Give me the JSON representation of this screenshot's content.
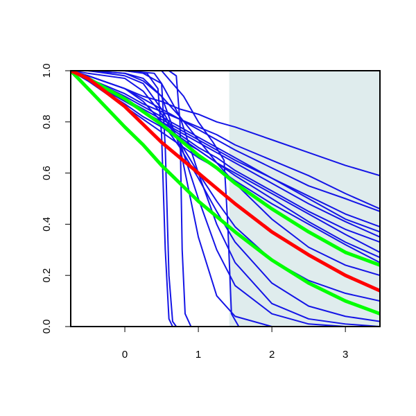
{
  "chart_data": {
    "type": "line",
    "xlim": [
      -0.736,
      3.47
    ],
    "ylim": [
      0,
      1
    ],
    "xticks": [
      0,
      1,
      2,
      3
    ],
    "yticks": [
      {
        "value": 0,
        "label": "0.0"
      },
      0.2,
      0.4,
      0.6,
      0.8,
      {
        "value": 1,
        "label": "1.0"
      }
    ],
    "shade": {
      "x": [
        1.42,
        3.47
      ],
      "color": "#dfeced"
    },
    "series": [
      {
        "color": "#1414e6",
        "line_width": 2,
        "x": [
          -0.736,
          -0.5,
          0,
          0.25,
          0.5,
          0.75,
          1,
          1.25,
          1.5,
          2,
          2.5,
          3,
          3.47
        ],
        "values": [
          1,
          0.98,
          0.93,
          0.9,
          0.88,
          0.85,
          0.83,
          0.8,
          0.78,
          0.73,
          0.68,
          0.63,
          0.59
        ]
      },
      {
        "color": "#1414e6",
        "line_width": 2,
        "x": [
          -0.736,
          -0.5,
          0,
          0.25,
          0.5,
          0.75,
          1,
          1.25,
          1.5,
          2,
          2.5,
          3,
          3.47
        ],
        "values": [
          1,
          0.97,
          0.91,
          0.87,
          0.84,
          0.81,
          0.78,
          0.75,
          0.71,
          0.65,
          0.59,
          0.52,
          0.46
        ]
      },
      {
        "color": "#1414e6",
        "line_width": 2,
        "x": [
          -0.736,
          -0.5,
          0,
          0.25,
          0.5,
          0.75,
          1,
          1.25,
          1.5,
          2,
          2.5,
          3,
          3.47
        ],
        "values": [
          1,
          0.98,
          0.93,
          0.89,
          0.85,
          0.81,
          0.77,
          0.73,
          0.69,
          0.62,
          0.55,
          0.5,
          0.45
        ]
      },
      {
        "color": "#1414e6",
        "line_width": 2,
        "x": [
          -0.736,
          -0.5,
          0,
          0.25,
          0.5,
          0.75,
          1,
          1.25,
          1.5,
          2,
          2.5,
          3,
          3.47
        ],
        "values": [
          1,
          0.97,
          0.89,
          0.85,
          0.81,
          0.77,
          0.73,
          0.69,
          0.65,
          0.58,
          0.51,
          0.44,
          0.39
        ]
      },
      {
        "color": "#1414e6",
        "line_width": 2,
        "x": [
          -0.736,
          -0.5,
          0,
          0.25,
          0.5,
          0.75,
          1,
          1.25,
          1.5,
          2,
          2.5,
          3,
          3.47
        ],
        "values": [
          1,
          0.97,
          0.9,
          0.86,
          0.82,
          0.78,
          0.74,
          0.7,
          0.66,
          0.58,
          0.5,
          0.42,
          0.37
        ]
      },
      {
        "color": "#1414e6",
        "line_width": 2,
        "x": [
          -0.736,
          -0.5,
          0,
          0.25,
          0.5,
          0.75,
          1,
          1.25,
          1.5,
          2,
          2.5,
          3,
          3.47
        ],
        "values": [
          1,
          0.96,
          0.88,
          0.84,
          0.8,
          0.76,
          0.72,
          0.68,
          0.64,
          0.56,
          0.48,
          0.41,
          0.35
        ]
      },
      {
        "color": "#1414e6",
        "line_width": 2,
        "x": [
          -0.736,
          -0.5,
          0,
          0.25,
          0.5,
          0.75,
          1,
          1.25,
          1.5,
          2,
          2.5,
          3,
          3.47
        ],
        "values": [
          1,
          0.97,
          0.89,
          0.84,
          0.8,
          0.75,
          0.7,
          0.66,
          0.61,
          0.53,
          0.45,
          0.38,
          0.33
        ]
      },
      {
        "color": "#1414e6",
        "line_width": 2,
        "x": [
          -0.736,
          -0.5,
          0,
          0.25,
          0.5,
          0.75,
          1,
          1.25,
          1.5,
          2,
          2.5,
          3,
          3.47
        ],
        "values": [
          1,
          0.96,
          0.87,
          0.82,
          0.78,
          0.73,
          0.69,
          0.64,
          0.6,
          0.52,
          0.44,
          0.36,
          0.29
        ]
      },
      {
        "color": "#1414e6",
        "line_width": 2,
        "x": [
          -0.736,
          -0.5,
          0,
          0.25,
          0.5,
          0.75,
          1,
          1.25,
          1.5,
          2,
          2.5,
          3,
          3.47
        ],
        "values": [
          1,
          0.97,
          0.89,
          0.84,
          0.79,
          0.74,
          0.69,
          0.64,
          0.59,
          0.5,
          0.41,
          0.33,
          0.27
        ]
      },
      {
        "color": "#1414e6",
        "line_width": 2,
        "x": [
          -0.736,
          -0.5,
          0,
          0.25,
          0.5,
          0.75,
          1,
          1.25,
          1.5,
          2,
          2.5,
          3,
          3.47
        ],
        "values": [
          1,
          0.96,
          0.86,
          0.81,
          0.76,
          0.71,
          0.66,
          0.62,
          0.57,
          0.48,
          0.4,
          0.32,
          0.25
        ]
      },
      {
        "color": "#1414e6",
        "line_width": 2,
        "x": [
          -0.736,
          -0.5,
          0,
          0.25,
          0.5,
          0.75,
          1,
          1.25,
          1.5,
          2,
          2.5,
          3,
          3.47
        ],
        "values": [
          1,
          1,
          0.99,
          0.96,
          0.9,
          0.82,
          0.73,
          0.64,
          0.56,
          0.42,
          0.31,
          0.24,
          0.2
        ]
      },
      {
        "color": "#1414e6",
        "line_width": 2,
        "x": [
          -0.736,
          -0.5,
          0,
          0.25,
          0.5,
          0.75,
          1,
          1.25,
          1.5,
          2,
          2.5,
          3,
          3.47
        ],
        "values": [
          1,
          0.99,
          0.97,
          0.92,
          0.83,
          0.72,
          0.6,
          0.49,
          0.39,
          0.26,
          0.18,
          0.13,
          0.1
        ]
      },
      {
        "color": "#1414e6",
        "line_width": 2,
        "x": [
          -0.736,
          0,
          0.3,
          0.45,
          0.5,
          0.55,
          0.6,
          0.65,
          3.47
        ],
        "values": [
          1,
          1,
          0.99,
          0.93,
          0.75,
          0.3,
          0.03,
          0,
          0
        ]
      },
      {
        "color": "#1414e6",
        "line_width": 2,
        "x": [
          -0.736,
          0,
          0.4,
          0.5,
          0.55,
          0.6,
          0.65,
          0.7,
          3.47
        ],
        "values": [
          1,
          1,
          0.99,
          0.95,
          0.7,
          0.2,
          0.02,
          0,
          0
        ]
      },
      {
        "color": "#1414e6",
        "line_width": 2,
        "x": [
          -0.736,
          0.6,
          0.7,
          0.75,
          0.78,
          0.82,
          0.9,
          3.47
        ],
        "values": [
          1,
          1,
          0.98,
          0.8,
          0.3,
          0.05,
          0,
          0
        ]
      },
      {
        "color": "#1414e6",
        "line_width": 2,
        "x": [
          -0.736,
          0.5,
          0.8,
          1,
          1.2,
          1.35,
          1.4,
          1.45,
          1.55,
          3.47
        ],
        "values": [
          1,
          1,
          0.9,
          0.8,
          0.72,
          0.65,
          0.4,
          0.05,
          0,
          0
        ]
      },
      {
        "color": "#1414e6",
        "line_width": 2,
        "x": [
          -0.736,
          -0.5,
          0,
          0.25,
          0.5,
          0.75,
          1,
          1.25,
          1.5,
          2,
          2.5,
          3,
          3.47
        ],
        "values": [
          1,
          1,
          0.99,
          0.97,
          0.9,
          0.7,
          0.35,
          0.12,
          0.04,
          0,
          0,
          0,
          0
        ]
      },
      {
        "color": "#1414e6",
        "line_width": 2,
        "x": [
          -0.736,
          -0.5,
          0,
          0.25,
          0.5,
          0.75,
          1,
          1.25,
          1.5,
          2,
          2.5,
          3,
          3.47
        ],
        "values": [
          1,
          1,
          0.98,
          0.95,
          0.85,
          0.72,
          0.5,
          0.3,
          0.16,
          0.05,
          0.01,
          0,
          0
        ]
      },
      {
        "color": "#1414e6",
        "line_width": 2,
        "x": [
          -0.736,
          -0.5,
          0,
          0.25,
          0.5,
          0.75,
          1,
          1.25,
          1.5,
          2,
          2.5,
          3,
          3.47
        ],
        "values": [
          1,
          1,
          1,
          0.99,
          0.95,
          0.82,
          0.6,
          0.4,
          0.25,
          0.09,
          0.03,
          0.01,
          0
        ]
      },
      {
        "color": "#1414e6",
        "line_width": 2,
        "x": [
          -0.736,
          -0.5,
          0,
          0.25,
          0.5,
          0.75,
          1,
          1.25,
          1.5,
          2,
          2.5,
          3,
          3.47
        ],
        "values": [
          1,
          0.98,
          0.93,
          0.88,
          0.8,
          0.7,
          0.58,
          0.45,
          0.33,
          0.17,
          0.08,
          0.04,
          0.02
        ]
      },
      {
        "color": "#00ff00",
        "line_width": 5,
        "x": [
          -0.736,
          -0.5,
          0,
          0.25,
          0.5,
          0.75,
          1,
          1.25,
          1.5,
          2,
          2.5,
          3,
          3.47
        ],
        "values": [
          1,
          0.93,
          0.78,
          0.71,
          0.63,
          0.56,
          0.49,
          0.43,
          0.37,
          0.26,
          0.17,
          0.1,
          0.05
        ]
      },
      {
        "color": "#00ff00",
        "line_width": 5,
        "x": [
          -0.736,
          -0.5,
          0,
          0.25,
          0.5,
          0.75,
          1,
          1.25,
          1.5,
          2,
          2.5,
          3,
          3.47
        ],
        "values": [
          1,
          0.97,
          0.89,
          0.84,
          0.79,
          0.73,
          0.67,
          0.62,
          0.56,
          0.46,
          0.37,
          0.29,
          0.24
        ]
      },
      {
        "color": "#ff0000",
        "line_width": 5,
        "x": [
          -0.736,
          -0.5,
          0,
          0.25,
          0.5,
          0.75,
          1,
          1.25,
          1.5,
          2,
          2.5,
          3,
          3.47
        ],
        "values": [
          1,
          0.97,
          0.86,
          0.79,
          0.72,
          0.66,
          0.6,
          0.54,
          0.48,
          0.37,
          0.28,
          0.2,
          0.14
        ]
      }
    ]
  }
}
